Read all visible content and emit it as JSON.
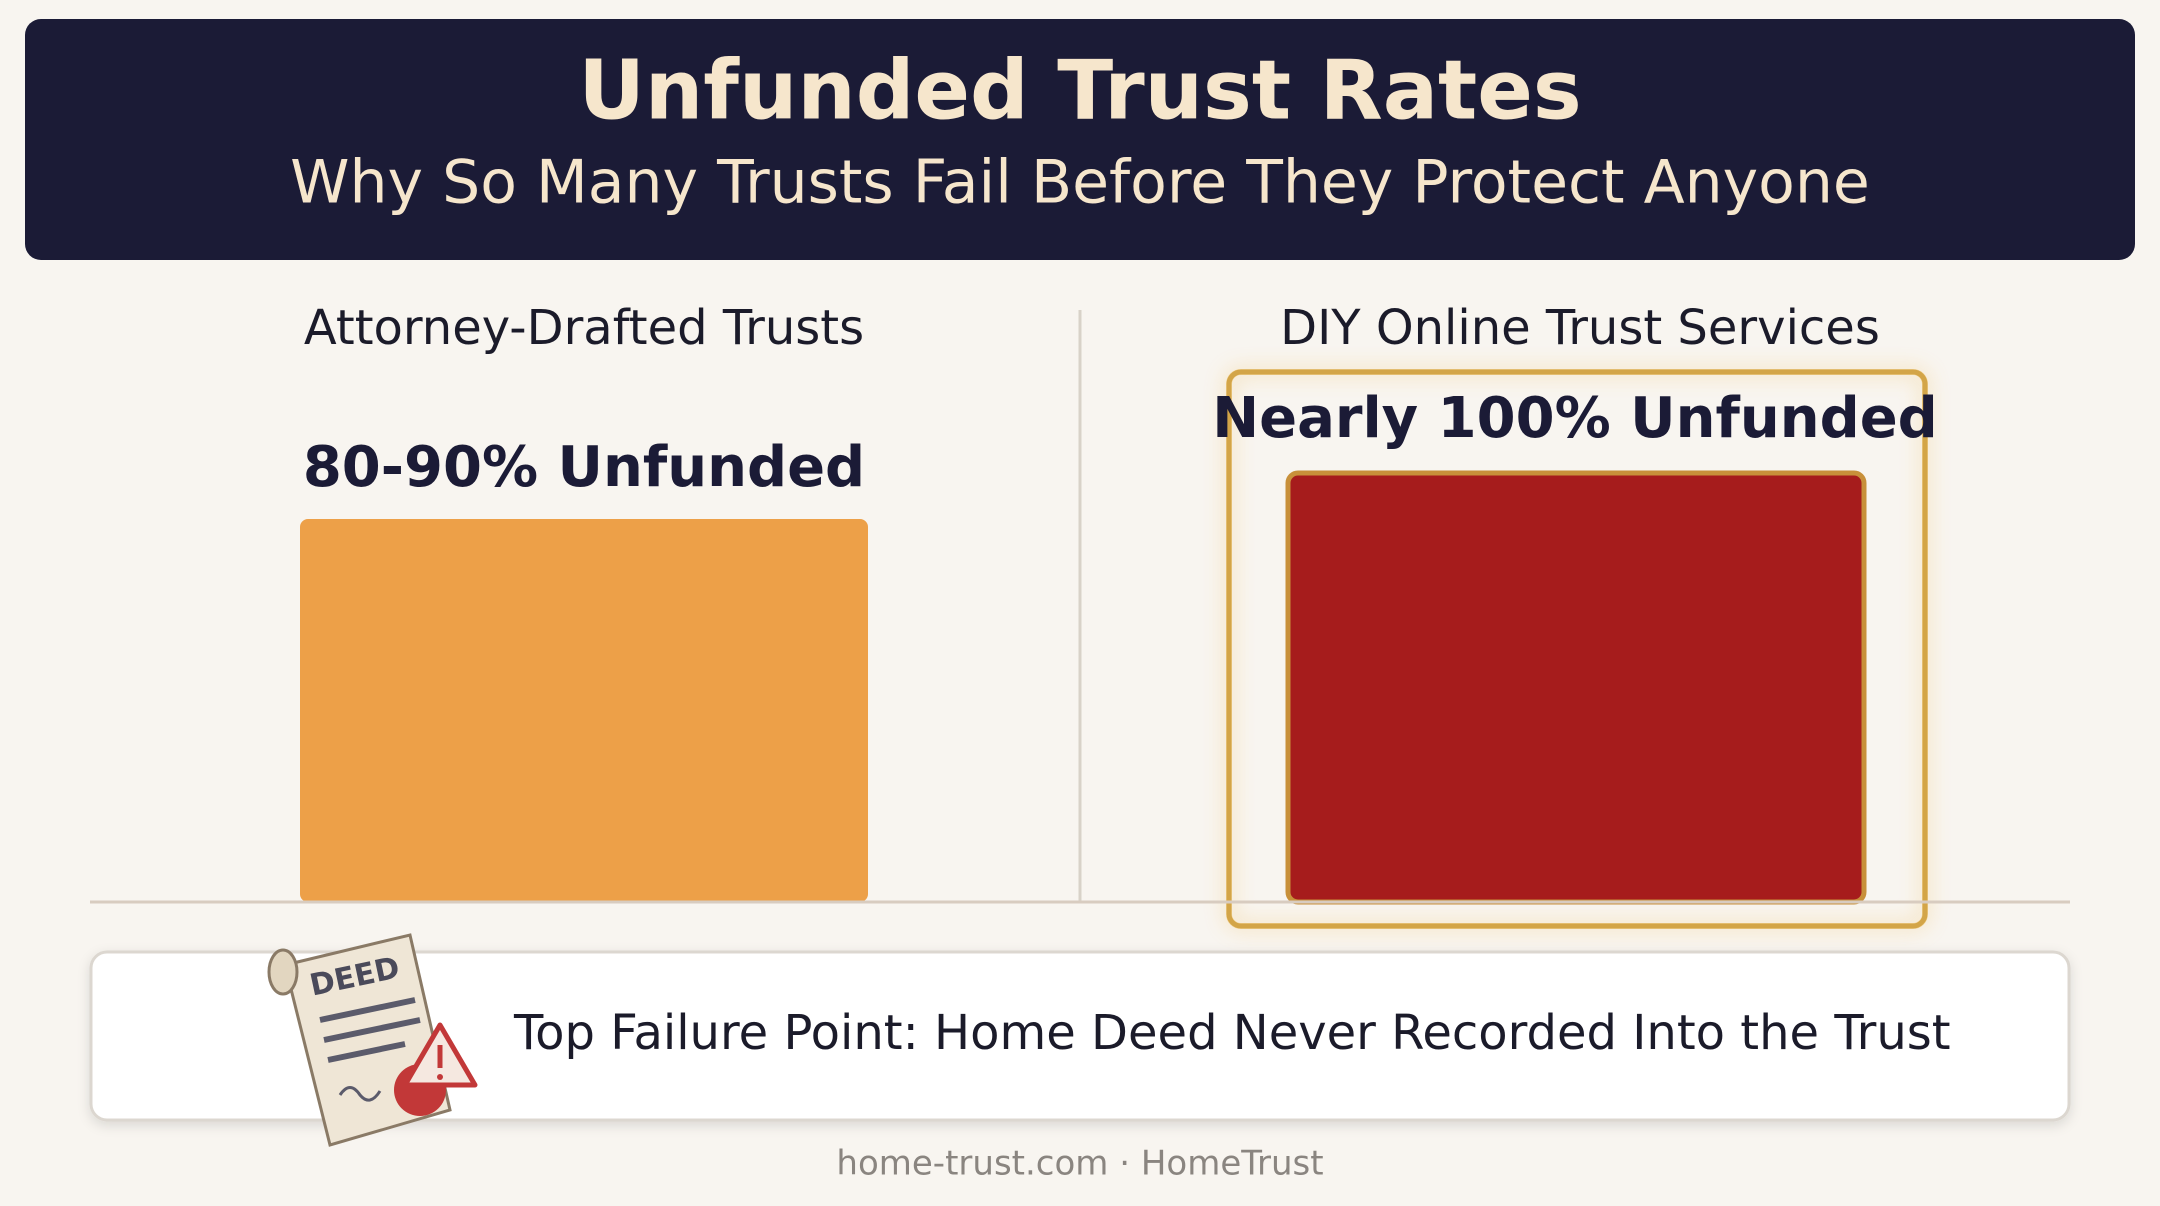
{
  "header": {
    "title": "Unfunded Trust Rates",
    "subtitle": "Why So Many Trusts Fail Before They Protect Anyone"
  },
  "panels": [
    {
      "label": "Attorney-Drafted Trusts",
      "value_label": "80-90% Unfunded"
    },
    {
      "label": "DIY Online Trust Services",
      "value_label": "Nearly 100% Unfunded"
    }
  ],
  "callout": {
    "icon_label": "DEED",
    "text": "Top Failure Point: Home Deed Never Recorded Into the Trust"
  },
  "footer": {
    "credit": "home-trust.com · HomeTrust"
  }
}
